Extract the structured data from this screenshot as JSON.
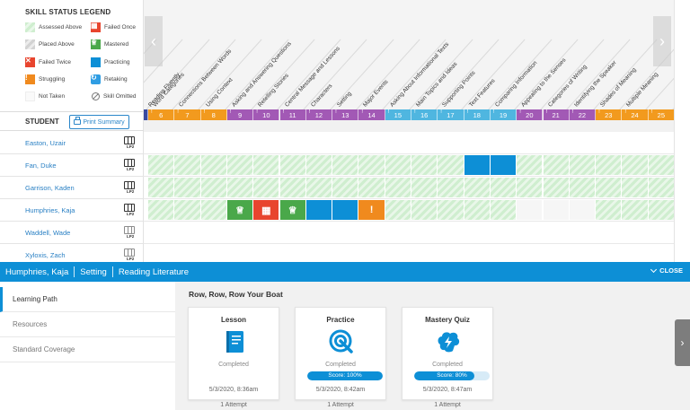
{
  "legend": {
    "title": "SKILL STATUS LEGEND",
    "items": [
      {
        "key": "assessed-above",
        "label": "Assessed Above",
        "swatch": "hatch"
      },
      {
        "key": "failed-once",
        "label": "Failed Once",
        "swatch": "red",
        "icon": "failed-once-icon"
      },
      {
        "key": "placed-above",
        "label": "Placed Above",
        "swatch": "hatch-grey"
      },
      {
        "key": "mastered",
        "label": "Mastered",
        "swatch": "green",
        "icon": "trophy-icon"
      },
      {
        "key": "failed-twice",
        "label": "Failed Twice",
        "swatch": "red",
        "icon": "x-icon"
      },
      {
        "key": "practicing",
        "label": "Practicing",
        "swatch": "blue"
      },
      {
        "key": "struggling",
        "label": "Struggling",
        "swatch": "orange",
        "icon": "exclamation-icon"
      },
      {
        "key": "retaking",
        "label": "Retaking",
        "swatch": "retake",
        "icon": "refresh-icon"
      },
      {
        "key": "not-taken",
        "label": "Not Taken",
        "swatch": "blank"
      },
      {
        "key": "skill-omitted",
        "label": "Skill Omitted",
        "swatch": "omitted",
        "icon": "omit-icon"
      }
    ]
  },
  "students_header": {
    "label": "STUDENT",
    "print_label": "Print Summary"
  },
  "students": [
    {
      "name": "Easton, Uzair",
      "badge": "LP2"
    },
    {
      "name": "Fan, Duke",
      "badge": "LP2"
    },
    {
      "name": "Garrison, Kaden",
      "badge": "LP2"
    },
    {
      "name": "Humphries, Kaja",
      "badge": "LP2"
    },
    {
      "name": "Waddell, Wade",
      "badge": "LP2"
    },
    {
      "name": "Xyloxis, Zach",
      "badge": "LP2"
    }
  ],
  "columns": [
    {
      "label": "Reading Fluently",
      "num": "",
      "color": "#3a4aa0"
    },
    {
      "label": "Word Categories",
      "num": "6",
      "color": "#f29a1e"
    },
    {
      "label": "Connections Between Words",
      "num": "7",
      "color": "#f29a1e"
    },
    {
      "label": "Using Context",
      "num": "8",
      "color": "#f29a1e"
    },
    {
      "label": "Asking and Answering Questions",
      "num": "9",
      "color": "#a259b5"
    },
    {
      "label": "Retelling Stories",
      "num": "10",
      "color": "#a259b5"
    },
    {
      "label": "Central Message and Lessons",
      "num": "11",
      "color": "#a259b5"
    },
    {
      "label": "Characters",
      "num": "12",
      "color": "#a259b5"
    },
    {
      "label": "Setting",
      "num": "13",
      "color": "#a259b5"
    },
    {
      "label": "Major Events",
      "num": "14",
      "color": "#a259b5"
    },
    {
      "label": "Asking About Informational Texts",
      "num": "15",
      "color": "#4fb6e0"
    },
    {
      "label": "Main Topics and Ideas",
      "num": "16",
      "color": "#4fb6e0"
    },
    {
      "label": "Supporting Points",
      "num": "17",
      "color": "#4fb6e0"
    },
    {
      "label": "Text Features",
      "num": "18",
      "color": "#4fb6e0"
    },
    {
      "label": "Comparing Information",
      "num": "19",
      "color": "#4fb6e0"
    },
    {
      "label": "Appealing to the Senses",
      "num": "20",
      "color": "#a259b5"
    },
    {
      "label": "Categories of Writing",
      "num": "21",
      "color": "#a259b5"
    },
    {
      "label": "Identifying the Speaker",
      "num": "22",
      "color": "#a259b5"
    },
    {
      "label": "Shades of Meaning",
      "num": "23",
      "color": "#f29a1e"
    },
    {
      "label": "Multiple Meaning",
      "num": "24",
      "color": "#f29a1e"
    },
    {
      "label": "",
      "num": "25",
      "color": "#f29a1e"
    }
  ],
  "grid_rows": [
    {
      "cells": []
    },
    {
      "cells": [
        "h",
        "h",
        "h",
        "h",
        "h",
        "h",
        "h",
        "h",
        "h",
        "h",
        "h",
        "h",
        "p",
        "p",
        "h",
        "h",
        "h",
        "h",
        "h",
        "h"
      ]
    },
    {
      "cells": [
        "h",
        "h",
        "h",
        "h",
        "h",
        "h",
        "h",
        "h",
        "h",
        "h",
        "h",
        "h",
        "h",
        "h",
        "h",
        "h",
        "h",
        "h",
        "h",
        "h"
      ]
    },
    {
      "cells": [
        "h",
        "h",
        "h",
        "m",
        "f",
        "m",
        "p",
        "p",
        "s",
        "h",
        "h",
        "h",
        "h",
        "h",
        "b",
        "b",
        "b",
        "h",
        "h",
        "h"
      ]
    },
    {
      "cells": []
    },
    {
      "cells": []
    }
  ],
  "bottom": {
    "breadcrumbs": [
      "Humphries, Kaja",
      "Setting",
      "Reading Literature"
    ],
    "close_label": "CLOSE",
    "nav": [
      "Learning Path",
      "Resources",
      "Standard Coverage"
    ],
    "lesson_title": "Row, Row, Row Your Boat",
    "cards": [
      {
        "title": "Lesson",
        "status": "Completed",
        "score": "",
        "score_pct": 0,
        "date": "5/3/2020, 8:36am",
        "attempts": "1 Attempt",
        "icon": "book-icon"
      },
      {
        "title": "Practice",
        "status": "Completed",
        "score": "Score: 100%",
        "score_pct": 100,
        "date": "5/3/2020, 8:42am",
        "attempts": "1 Attempt",
        "icon": "target-icon"
      },
      {
        "title": "Mastery Quiz",
        "status": "Completed",
        "score": "Score: 80%",
        "score_pct": 80,
        "date": "5/3/2020, 8:47am",
        "attempts": "1 Attempt",
        "icon": "brain-bolt-icon"
      }
    ]
  },
  "colors": {
    "accent": "#0d8fd6",
    "mastered": "#4aa84a",
    "failed": "#e8452e",
    "struggling": "#f08a1e",
    "practicing": "#0d8fd6"
  }
}
